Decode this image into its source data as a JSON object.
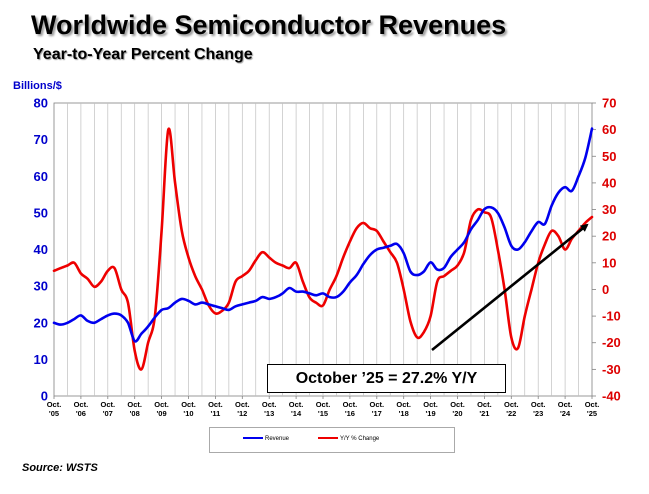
{
  "header": {
    "title": "Worldwide Semiconductor Revenues",
    "subtitle": "Year-to-Year Percent Change"
  },
  "left_axis_unit": "Billions/$",
  "callout": "October ’25 = 27.2% Y/Y",
  "source": "Source: WSTS",
  "colors": {
    "revenue": "#0000ee",
    "yoy": "#ee0000",
    "grid": "#c0c0c0",
    "arrow": "#000000"
  },
  "chart_data": {
    "type": "line",
    "title": "Worldwide Semiconductor Revenues",
    "subtitle": "Year-to-Year Percent Change",
    "grid": true,
    "legend_position": "bottom-center",
    "x_tick_labels": [
      [
        "Oct.",
        "'05"
      ],
      [
        "Oct.",
        "'06"
      ],
      [
        "Oct.",
        "'07"
      ],
      [
        "Oct.",
        "'08"
      ],
      [
        "Oct.",
        "'09"
      ],
      [
        "Oct.",
        "'10"
      ],
      [
        "Oct.",
        "'11"
      ],
      [
        "Oct.",
        "'12"
      ],
      [
        "Oct.",
        "'13"
      ],
      [
        "Oct.",
        "'14"
      ],
      [
        "Oct.",
        "'15"
      ],
      [
        "Oct.",
        "'16"
      ],
      [
        "Oct.",
        "'17"
      ],
      [
        "Oct.",
        "'18"
      ],
      [
        "Oct.",
        "'19"
      ],
      [
        "Oct.",
        "'20"
      ],
      [
        "Oct.",
        "'21"
      ],
      [
        "Oct.",
        "'22"
      ],
      [
        "Oct.",
        "'23"
      ],
      [
        "Oct.",
        "'24"
      ],
      [
        "Oct.",
        "'25"
      ]
    ],
    "x_range": [
      2005.75,
      2025.75
    ],
    "y_left": {
      "label": "Billions/$",
      "range": [
        0,
        80
      ],
      "ticks": [
        "0",
        "10",
        "20",
        "30",
        "40",
        "50",
        "60",
        "70",
        "80"
      ]
    },
    "y_right": {
      "label": "",
      "range": [
        -40,
        70
      ],
      "ticks": [
        "-40",
        "-30",
        "-20",
        "-10",
        "0",
        "10",
        "20",
        "30",
        "40",
        "50",
        "60",
        "70"
      ]
    },
    "series": [
      {
        "name": "Revenue",
        "axis": "left",
        "x": [
          2005.75,
          2006.0,
          2006.25,
          2006.5,
          2006.75,
          2007.0,
          2007.25,
          2007.5,
          2007.75,
          2008.0,
          2008.25,
          2008.5,
          2008.75,
          2009.0,
          2009.25,
          2009.5,
          2009.75,
          2010.0,
          2010.25,
          2010.5,
          2010.75,
          2011.0,
          2011.25,
          2011.5,
          2011.75,
          2012.0,
          2012.25,
          2012.5,
          2012.75,
          2013.0,
          2013.25,
          2013.5,
          2013.75,
          2014.0,
          2014.25,
          2014.5,
          2014.75,
          2015.0,
          2015.25,
          2015.5,
          2015.75,
          2016.0,
          2016.25,
          2016.5,
          2016.75,
          2017.0,
          2017.25,
          2017.5,
          2017.75,
          2018.0,
          2018.25,
          2018.5,
          2018.75,
          2019.0,
          2019.25,
          2019.5,
          2019.75,
          2020.0,
          2020.25,
          2020.5,
          2020.75,
          2021.0,
          2021.25,
          2021.5,
          2021.75,
          2022.0,
          2022.25,
          2022.5,
          2022.75,
          2023.0,
          2023.25,
          2023.5,
          2023.75,
          2024.0,
          2024.25,
          2024.5,
          2024.75,
          2025.0,
          2025.25,
          2025.5,
          2025.75
        ],
        "values": [
          20,
          19.5,
          20,
          21,
          22,
          20.5,
          20,
          21,
          22,
          22.5,
          22,
          20,
          15,
          17,
          19,
          21.5,
          23.5,
          24,
          25.5,
          26.5,
          26,
          25,
          25.5,
          25,
          24.5,
          24,
          23.5,
          24.5,
          25,
          25.5,
          26,
          27,
          26.5,
          27,
          28,
          29.5,
          28.5,
          28.5,
          28,
          27.5,
          28,
          27,
          27,
          28.5,
          31,
          33,
          36,
          38.5,
          40,
          40.5,
          41,
          41.5,
          39,
          34,
          33,
          34,
          36.5,
          34.5,
          35,
          38,
          40,
          42,
          45.5,
          48,
          51,
          51.5,
          50,
          46,
          41,
          40,
          42,
          45,
          47.5,
          47,
          52,
          55.5,
          57,
          56,
          60,
          65,
          73
        ]
      },
      {
        "name": "Y/Y % Change",
        "axis": "right",
        "x": [
          2005.75,
          2006.0,
          2006.25,
          2006.5,
          2006.75,
          2007.0,
          2007.25,
          2007.5,
          2007.75,
          2008.0,
          2008.25,
          2008.5,
          2008.75,
          2009.0,
          2009.25,
          2009.5,
          2009.75,
          2010.0,
          2010.25,
          2010.5,
          2010.75,
          2011.0,
          2011.25,
          2011.5,
          2011.75,
          2012.0,
          2012.25,
          2012.5,
          2012.75,
          2013.0,
          2013.25,
          2013.5,
          2013.75,
          2014.0,
          2014.25,
          2014.5,
          2014.75,
          2015.0,
          2015.25,
          2015.5,
          2015.75,
          2016.0,
          2016.25,
          2016.5,
          2016.75,
          2017.0,
          2017.25,
          2017.5,
          2017.75,
          2018.0,
          2018.25,
          2018.5,
          2018.75,
          2019.0,
          2019.25,
          2019.5,
          2019.75,
          2020.0,
          2020.25,
          2020.5,
          2020.75,
          2021.0,
          2021.25,
          2021.5,
          2021.75,
          2022.0,
          2022.25,
          2022.5,
          2022.75,
          2023.0,
          2023.25,
          2023.5,
          2023.75,
          2024.0,
          2024.25,
          2024.5,
          2024.75,
          2025.0,
          2025.25,
          2025.5,
          2025.75
        ],
        "values": [
          7,
          8,
          9,
          10,
          6,
          4,
          1,
          3,
          7,
          8,
          0,
          -5,
          -23,
          -30,
          -20,
          -10,
          22,
          60,
          40,
          22,
          12,
          5,
          0,
          -6,
          -9,
          -8,
          -5,
          3,
          5,
          7,
          11,
          14,
          12,
          10,
          9,
          8,
          10,
          3,
          -3,
          -5,
          -6,
          0,
          5,
          12,
          18,
          23,
          25,
          23,
          22,
          18,
          14,
          10,
          0,
          -12,
          -18,
          -16,
          -10,
          3,
          5,
          7,
          9,
          14,
          26,
          30,
          29,
          27,
          15,
          0,
          -18,
          -22,
          -10,
          0,
          10,
          17,
          22,
          20,
          15,
          19,
          22,
          25,
          27.2
        ]
      }
    ]
  }
}
